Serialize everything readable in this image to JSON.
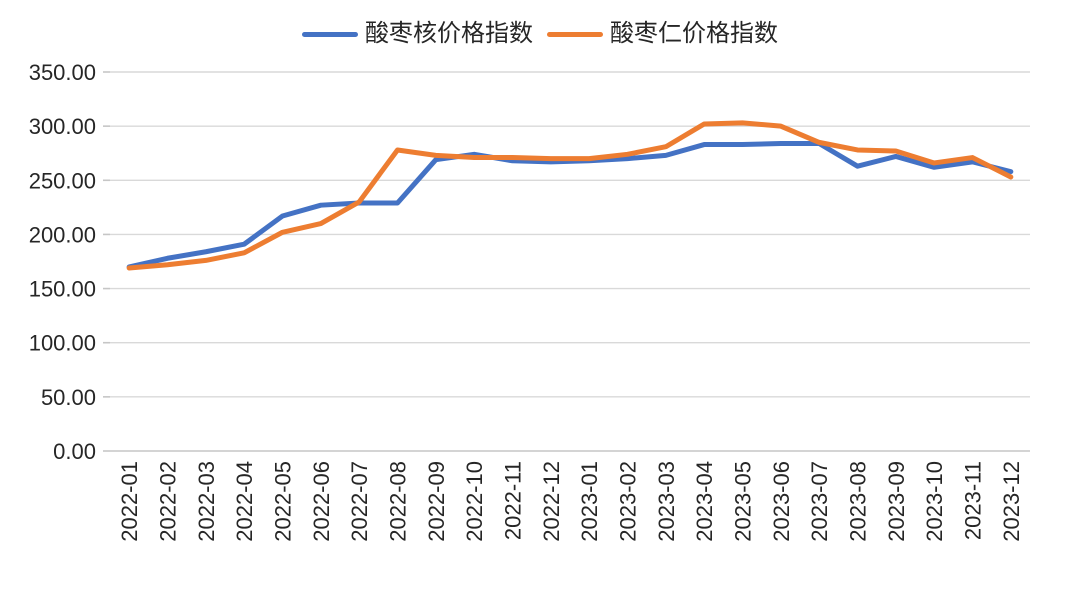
{
  "chart_data": {
    "type": "line",
    "categories": [
      "2022-01",
      "2022-02",
      "2022-03",
      "2022-04",
      "2022-05",
      "2022-06",
      "2022-07",
      "2022-08",
      "2022-09",
      "2022-10",
      "2022-11",
      "2022-12",
      "2023-01",
      "2023-02",
      "2023-03",
      "2023-04",
      "2023-05",
      "2023-06",
      "2023-07",
      "2023-08",
      "2023-09",
      "2023-10",
      "2023-11",
      "2023-12"
    ],
    "series": [
      {
        "name": "酸枣核价格指数",
        "color": "#4472C4",
        "values": [
          170,
          178,
          184,
          191,
          217,
          227,
          229,
          229,
          269,
          274,
          268,
          267,
          268,
          270,
          273,
          283,
          283,
          284,
          284,
          263,
          272,
          262,
          267,
          258
        ]
      },
      {
        "name": "酸枣仁价格指数",
        "color": "#ED7D31",
        "values": [
          169,
          172,
          176,
          183,
          202,
          210,
          230,
          278,
          273,
          271,
          271,
          270,
          270,
          274,
          281,
          302,
          303,
          300,
          285,
          278,
          277,
          266,
          271,
          253
        ]
      }
    ],
    "title": "",
    "xlabel": "",
    "ylabel": "",
    "ylim": [
      0,
      350
    ],
    "ytick_step": 50,
    "ytick_labels": [
      "0.00",
      "50.00",
      "100.00",
      "150.00",
      "200.00",
      "250.00",
      "300.00",
      "350.00"
    ],
    "grid": "horizontal",
    "legend_position": "top"
  },
  "colors": {
    "gridline": "#D9D9D9",
    "axis_line": "#C6C6C6",
    "tick_mark": "#C6C6C6",
    "tick_label": "#262626",
    "background": "#FFFFFF"
  }
}
